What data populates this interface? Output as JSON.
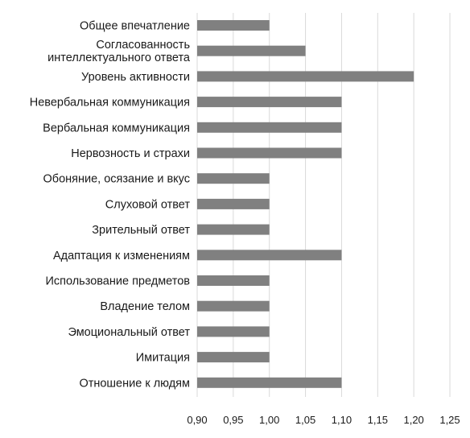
{
  "chart_data": {
    "type": "bar",
    "orientation": "horizontal",
    "categories": [
      "Общее впечатление",
      "Согласованность\nинтеллектуального ответа",
      "Уровень активности",
      "Невербальная коммуникация",
      "Вербальная коммуникация",
      "Нервозность и страхи",
      "Обоняние, осязание и вкус",
      "Слуховой ответ",
      "Зрительный ответ",
      "Адаптация к изменениям",
      "Использование предметов",
      "Владение телом",
      "Эмоциональный ответ",
      "Имитация",
      "Отношение к людям"
    ],
    "values": [
      1.0,
      1.05,
      1.2,
      1.1,
      1.1,
      1.1,
      1.0,
      1.0,
      1.0,
      1.1,
      1.0,
      1.0,
      1.0,
      1.0,
      1.1
    ],
    "xlim": [
      0.9,
      1.25
    ],
    "xticks": [
      0.9,
      0.95,
      1.0,
      1.05,
      1.1,
      1.15,
      1.2,
      1.25
    ],
    "xtick_labels": [
      "0,90",
      "0,95",
      "1,00",
      "1,05",
      "1,10",
      "1,15",
      "1,20",
      "1,25"
    ],
    "grid": "vertical",
    "legend": "none",
    "bar_color": "#808080",
    "grid_color": "#d9d9d9"
  }
}
